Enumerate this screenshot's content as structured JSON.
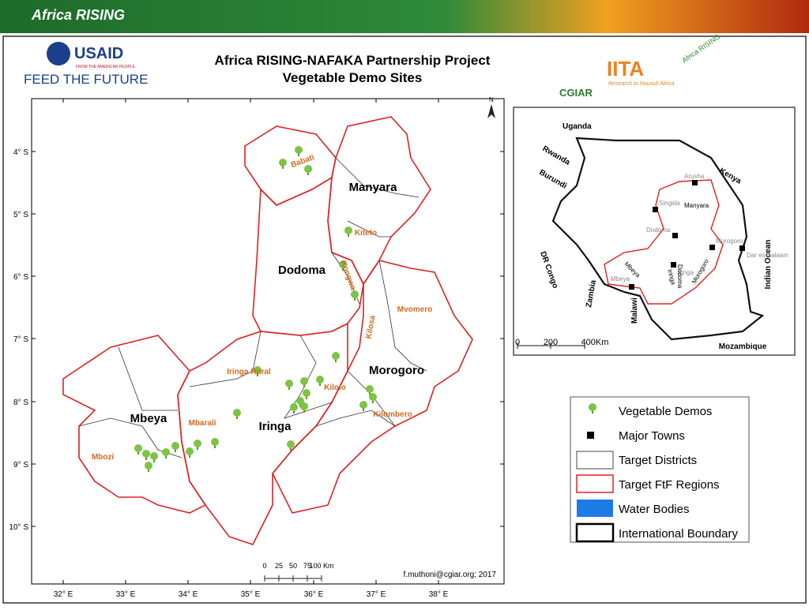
{
  "header": {
    "brand": "Africa RISING"
  },
  "logos": {
    "usaid": "USAID",
    "usaid_tagline": "FROM THE AMERICAN PEOPLE",
    "feed": "FEED THE FUTURE",
    "cgiar": "CGIAR",
    "iita": "IITA",
    "iita_tagline": "Research to Nourish Africa",
    "ar": "Africa RISING"
  },
  "title": [
    "Africa RISING-NAFAKA Partnership Project",
    "Vegetable Demo Sites"
  ],
  "map": {
    "north": "N",
    "regions": [
      "Manyara",
      "Dodoma",
      "Morogoro",
      "Iringa",
      "Mbeya"
    ],
    "districts": [
      "Babati",
      "Kiteto",
      "Kongwa",
      "Mvomero",
      "Kilosa",
      "Iringa Rural",
      "Kilolo",
      "Kilombero",
      "Mbarali",
      "Mbozi"
    ],
    "lat_labels": [
      "4° S",
      "5° S",
      "6° S",
      "7° S",
      "8° S",
      "9° S",
      "10° S"
    ],
    "lon_labels": [
      "32° E",
      "33° E",
      "34° E",
      "35° E",
      "36° E",
      "37° E",
      "38° E"
    ],
    "scale_labels": [
      "0",
      "25",
      "50",
      "75",
      "100 Km"
    ],
    "credit": "f.muthoni@cgiar.org; 2017"
  },
  "inset": {
    "countries": [
      "Uganda",
      "Rwanda",
      "Burundi",
      "Kenya",
      "DR Congo",
      "Zambia",
      "Malawi",
      "Mozambique",
      "Indian Ocean"
    ],
    "towns": [
      "Arusha",
      "Singida",
      "Dodoma",
      "Morogoro",
      "Dar es Salaam",
      "Iringa",
      "Mbeya"
    ],
    "regions": [
      "Manyara",
      "Dodoma",
      "Iringa",
      "Morogoro",
      "Mbeya"
    ],
    "scale_labels": [
      "0",
      "200",
      "400Km"
    ]
  },
  "legend": {
    "items": [
      "Vegetable Demos",
      "Major Towns",
      "Target Districts",
      "Target FtF Regions",
      "Water Bodies",
      "International Boundary"
    ]
  }
}
